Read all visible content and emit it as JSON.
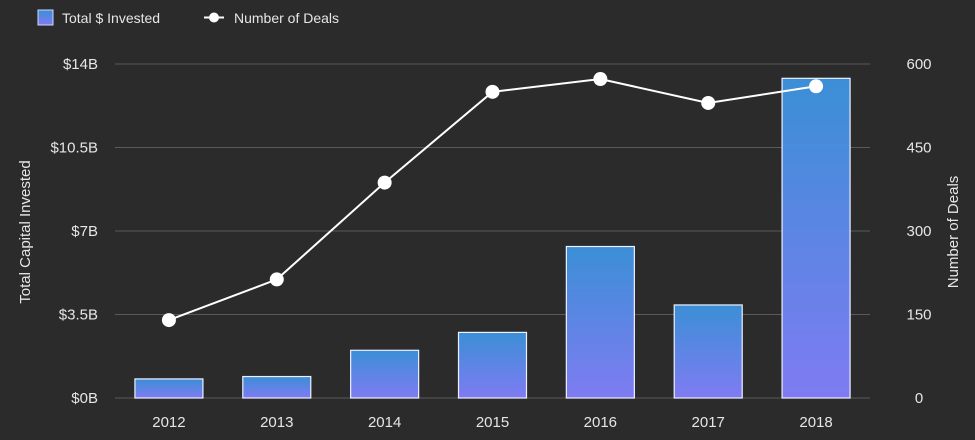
{
  "chart_data": {
    "type": "bar",
    "categories": [
      "2012",
      "2013",
      "2014",
      "2015",
      "2016",
      "2017",
      "2018"
    ],
    "series": [
      {
        "name": "Total $ Invested",
        "type": "bar",
        "axis": "left",
        "values": [
          0.8,
          0.9,
          2.0,
          2.75,
          6.35,
          3.9,
          13.4
        ]
      },
      {
        "name": "Number of Deals",
        "type": "line",
        "axis": "right",
        "values": [
          140,
          213,
          387,
          550,
          573,
          530,
          560
        ]
      }
    ],
    "ylabel": "Total Capital Invested",
    "ylabel_right": "Number of Deals",
    "ylim": [
      0,
      14
    ],
    "ylim_right": [
      0,
      600
    ],
    "yticks": [
      {
        "value": 0,
        "label": "$0B"
      },
      {
        "value": 3.5,
        "label": "$3.5B"
      },
      {
        "value": 7,
        "label": "$7B"
      },
      {
        "value": 10.5,
        "label": "$10.5B"
      },
      {
        "value": 14,
        "label": "$14B"
      }
    ],
    "yticks_right": [
      {
        "value": 0,
        "label": "0"
      },
      {
        "value": 150,
        "label": "150"
      },
      {
        "value": 300,
        "label": "300"
      },
      {
        "value": 450,
        "label": "450"
      },
      {
        "value": 600,
        "label": "600"
      }
    ],
    "grid": true,
    "legend_position": "top-left"
  },
  "colors": {
    "background": "#2b2b2b",
    "grid": "#5a5a5a",
    "bar_top": "#3b8fd6",
    "bar_bottom": "#7f7bf2",
    "line": "#ffffff"
  }
}
